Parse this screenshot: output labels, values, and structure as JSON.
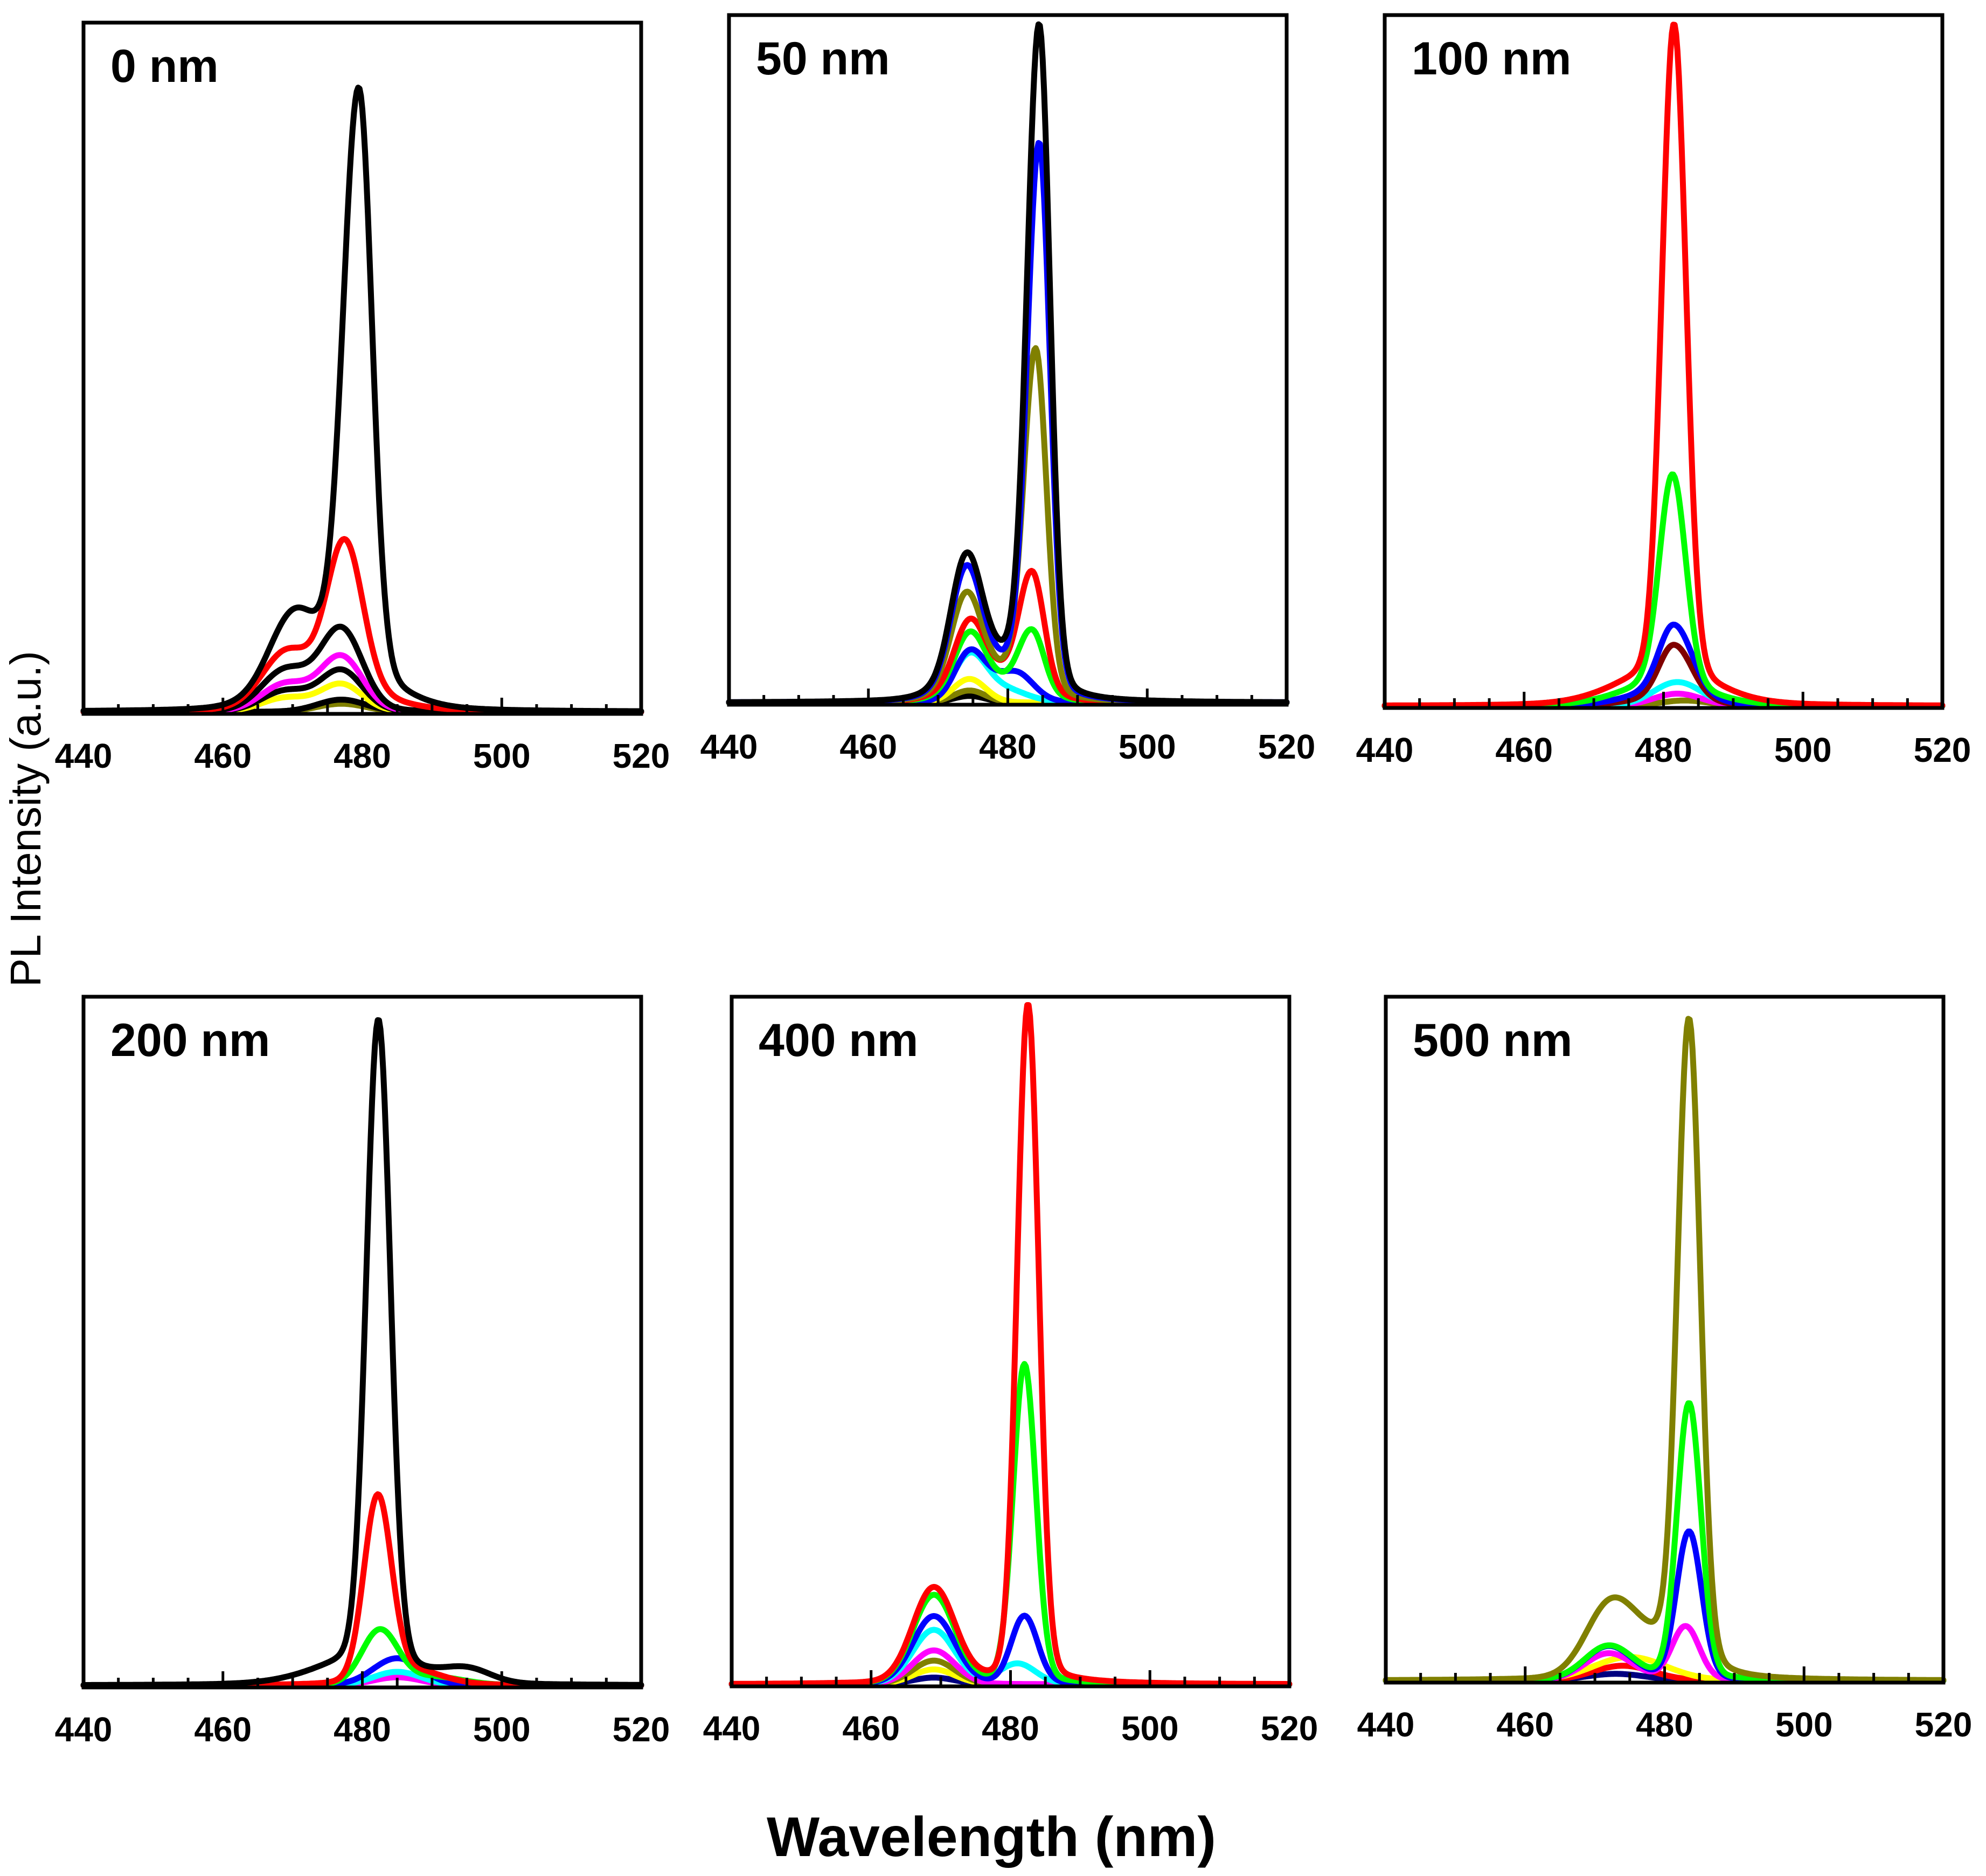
{
  "chart_data": {
    "type": "line",
    "xlabel": "Wavelength (nm)",
    "ylabel": "PL Intensity (a.u.)",
    "xlim": [
      440,
      520
    ],
    "xticks": [
      440,
      460,
      480,
      500,
      520
    ],
    "y_units": "arbitrary (normalized to panel maximum)",
    "panels": [
      {
        "label": "0 nm",
        "ylim": [
          0,
          1.05
        ],
        "series": [
          {
            "color": "#000000",
            "peaks": [
              {
                "center": 479.5,
                "amp": 0.86,
                "w_left": 2.6,
                "w_right": 2.2
              },
              {
                "center": 470,
                "amp": 0.1,
                "w_left": 4,
                "w_right": 4
              },
              {
                "center": 476,
                "amp": 0.06,
                "w_left": 8,
                "w_right": 8
              }
            ]
          },
          {
            "color": "#ff0000",
            "peaks": [
              {
                "center": 477.5,
                "amp": 0.22,
                "w_left": 3,
                "w_right": 3
              },
              {
                "center": 469,
                "amp": 0.07,
                "w_left": 4,
                "w_right": 4
              },
              {
                "center": 476,
                "amp": 0.03,
                "w_left": 8,
                "w_right": 8
              }
            ]
          },
          {
            "color": "#000000",
            "peaks": [
              {
                "center": 477,
                "amp": 0.12,
                "w_left": 3.5,
                "w_right": 3.5
              },
              {
                "center": 469,
                "amp": 0.06,
                "w_left": 4,
                "w_right": 4
              }
            ]
          },
          {
            "color": "#ff00ff",
            "peaks": [
              {
                "center": 477,
                "amp": 0.08,
                "w_left": 3.5,
                "w_right": 3.5
              },
              {
                "center": 469,
                "amp": 0.04,
                "w_left": 4,
                "w_right": 4
              }
            ]
          },
          {
            "color": "#000000",
            "peaks": [
              {
                "center": 477,
                "amp": 0.06,
                "w_left": 3.5,
                "w_right": 3.5
              },
              {
                "center": 469,
                "amp": 0.03,
                "w_left": 4,
                "w_right": 4
              }
            ]
          },
          {
            "color": "#ffff00",
            "peaks": [
              {
                "center": 477,
                "amp": 0.04,
                "w_left": 3.5,
                "w_right": 3.5
              },
              {
                "center": 469,
                "amp": 0.02,
                "w_left": 4,
                "w_right": 4
              }
            ]
          },
          {
            "color": "#000000",
            "peaks": [
              {
                "center": 477,
                "amp": 0.018,
                "w_left": 4,
                "w_right": 4
              }
            ]
          },
          {
            "color": "#808000",
            "peaks": [
              {
                "center": 477,
                "amp": 0.012,
                "w_left": 4,
                "w_right": 4
              }
            ]
          }
        ]
      },
      {
        "label": "50 nm",
        "ylim": [
          0,
          1.05
        ],
        "series": [
          {
            "color": "#000000",
            "peaks": [
              {
                "center": 484.5,
                "amp": 0.97,
                "w_left": 2.0,
                "w_right": 1.8
              },
              {
                "center": 474,
                "amp": 0.17,
                "w_left": 2.5,
                "w_right": 2.5
              },
              {
                "center": 478,
                "amp": 0.06,
                "w_left": 6,
                "w_right": 6
              }
            ]
          },
          {
            "color": "#0000ff",
            "peaks": [
              {
                "center": 484.5,
                "amp": 0.8,
                "w_left": 2.0,
                "w_right": 1.8
              },
              {
                "center": 474,
                "amp": 0.16,
                "w_left": 2.5,
                "w_right": 2.5
              },
              {
                "center": 478,
                "amp": 0.05,
                "w_left": 6,
                "w_right": 6
              }
            ]
          },
          {
            "color": "#808000",
            "peaks": [
              {
                "center": 484,
                "amp": 0.5,
                "w_left": 2.0,
                "w_right": 1.8
              },
              {
                "center": 474,
                "amp": 0.13,
                "w_left": 2.5,
                "w_right": 2.5
              },
              {
                "center": 478,
                "amp": 0.04,
                "w_left": 6,
                "w_right": 6
              }
            ]
          },
          {
            "color": "#ff0000",
            "peaks": [
              {
                "center": 483.5,
                "amp": 0.17,
                "w_left": 2.2,
                "w_right": 2.0
              },
              {
                "center": 474.5,
                "amp": 0.09,
                "w_left": 2.5,
                "w_right": 2.5
              },
              {
                "center": 478,
                "amp": 0.04,
                "w_left": 6,
                "w_right": 6
              }
            ]
          },
          {
            "color": "#00ff00",
            "peaks": [
              {
                "center": 483.5,
                "amp": 0.09,
                "w_left": 2.2,
                "w_right": 2.0
              },
              {
                "center": 474.5,
                "amp": 0.08,
                "w_left": 2.5,
                "w_right": 2.5
              },
              {
                "center": 478,
                "amp": 0.03,
                "w_left": 6,
                "w_right": 6
              }
            ]
          },
          {
            "color": "#0000ff",
            "peaks": [
              {
                "center": 474.5,
                "amp": 0.07,
                "w_left": 2.5,
                "w_right": 2.5
              },
              {
                "center": 481,
                "amp": 0.045,
                "w_left": 4,
                "w_right": 3
              }
            ]
          },
          {
            "color": "#00ffff",
            "peaks": [
              {
                "center": 474.5,
                "amp": 0.065,
                "w_left": 2.7,
                "w_right": 2.7
              },
              {
                "center": 479,
                "amp": 0.02,
                "w_left": 4,
                "w_right": 4
              }
            ]
          },
          {
            "color": "#ffff00",
            "peaks": [
              {
                "center": 474.5,
                "amp": 0.035,
                "w_left": 2.7,
                "w_right": 2.7
              }
            ]
          },
          {
            "color": "#808000",
            "peaks": [
              {
                "center": 474.5,
                "amp": 0.018,
                "w_left": 2.7,
                "w_right": 2.7
              }
            ]
          },
          {
            "color": "#000000",
            "peaks": [
              {
                "center": 474.5,
                "amp": 0.01,
                "w_left": 2.7,
                "w_right": 2.7
              }
            ]
          }
        ]
      },
      {
        "label": "100 nm",
        "ylim": [
          0,
          1.05
        ],
        "series": [
          {
            "color": "#ff0000",
            "peaks": [
              {
                "center": 481.5,
                "amp": 0.96,
                "w_left": 2.0,
                "w_right": 2.0
              },
              {
                "center": 480,
                "amp": 0.04,
                "w_left": 8,
                "w_right": 8
              }
            ]
          },
          {
            "color": "#00ff00",
            "peaks": [
              {
                "center": 481.3,
                "amp": 0.31,
                "w_left": 2.2,
                "w_right": 2.2
              },
              {
                "center": 480,
                "amp": 0.03,
                "w_left": 7,
                "w_right": 7
              }
            ]
          },
          {
            "color": "#0000ff",
            "peaks": [
              {
                "center": 481.5,
                "amp": 0.1,
                "w_left": 2.5,
                "w_right": 3
              },
              {
                "center": 480,
                "amp": 0.02,
                "w_left": 6,
                "w_right": 6
              }
            ]
          },
          {
            "color": "#800000",
            "peaks": [
              {
                "center": 481.5,
                "amp": 0.08,
                "w_left": 2.5,
                "w_right": 3
              },
              {
                "center": 480,
                "amp": 0.01,
                "w_left": 6,
                "w_right": 6
              }
            ]
          },
          {
            "color": "#00ffff",
            "peaks": [
              {
                "center": 482,
                "amp": 0.035,
                "w_left": 4,
                "w_right": 4
              }
            ]
          },
          {
            "color": "#ff00ff",
            "peaks": [
              {
                "center": 482,
                "amp": 0.018,
                "w_left": 4,
                "w_right": 4
              }
            ]
          },
          {
            "color": "#808000",
            "peaks": [
              {
                "center": 483,
                "amp": 0.008,
                "w_left": 4,
                "w_right": 4
              }
            ]
          }
        ]
      },
      {
        "label": "200 nm",
        "ylim": [
          0,
          1.05
        ],
        "series": [
          {
            "color": "#000000",
            "peaks": [
              {
                "center": 482.3,
                "amp": 0.95,
                "w_left": 2.0,
                "w_right": 2.0
              },
              {
                "center": 480,
                "amp": 0.03,
                "w_left": 8,
                "w_right": 8
              },
              {
                "center": 495,
                "amp": 0.02,
                "w_left": 4,
                "w_right": 4
              }
            ]
          },
          {
            "color": "#ff0000",
            "peaks": [
              {
                "center": 482.2,
                "amp": 0.27,
                "w_left": 2.3,
                "w_right": 2.3
              },
              {
                "center": 487,
                "amp": 0.02,
                "w_left": 5,
                "w_right": 5
              }
            ]
          },
          {
            "color": "#00ff00",
            "peaks": [
              {
                "center": 482.5,
                "amp": 0.08,
                "w_left": 3,
                "w_right": 3
              },
              {
                "center": 490,
                "amp": 0.012,
                "w_left": 5,
                "w_right": 5
              }
            ]
          },
          {
            "color": "#0000ff",
            "peaks": [
              {
                "center": 485,
                "amp": 0.04,
                "w_left": 4,
                "w_right": 4
              }
            ]
          },
          {
            "color": "#00ffff",
            "peaks": [
              {
                "center": 485,
                "amp": 0.02,
                "w_left": 4,
                "w_right": 4
              }
            ]
          },
          {
            "color": "#ff00ff",
            "peaks": [
              {
                "center": 485,
                "amp": 0.012,
                "w_left": 4,
                "w_right": 4
              }
            ]
          }
        ]
      },
      {
        "label": "400 nm",
        "ylim": [
          0,
          1.05
        ],
        "series": [
          {
            "color": "#ff0000",
            "peaks": [
              {
                "center": 482.5,
                "amp": 1.0,
                "w_left": 1.8,
                "w_right": 1.8
              },
              {
                "center": 469,
                "amp": 0.14,
                "w_left": 3.5,
                "w_right": 3.5
              }
            ]
          },
          {
            "color": "#00ff00",
            "peaks": [
              {
                "center": 482,
                "amp": 0.47,
                "w_left": 1.9,
                "w_right": 1.9
              },
              {
                "center": 469,
                "amp": 0.13,
                "w_left": 3.5,
                "w_right": 3.5
              }
            ]
          },
          {
            "color": "#0000ff",
            "peaks": [
              {
                "center": 482,
                "amp": 0.1,
                "w_left": 2.2,
                "w_right": 2.2
              },
              {
                "center": 469,
                "amp": 0.1,
                "w_left": 3.5,
                "w_right": 3.5
              }
            ]
          },
          {
            "color": "#00ffff",
            "peaks": [
              {
                "center": 481,
                "amp": 0.03,
                "w_left": 3,
                "w_right": 3
              },
              {
                "center": 469,
                "amp": 0.08,
                "w_left": 3.5,
                "w_right": 3.5
              }
            ]
          },
          {
            "color": "#ff00ff",
            "peaks": [
              {
                "center": 469,
                "amp": 0.05,
                "w_left": 3.5,
                "w_right": 3.5
              }
            ]
          },
          {
            "color": "#808000",
            "peaks": [
              {
                "center": 469,
                "amp": 0.035,
                "w_left": 3.5,
                "w_right": 3.5
              }
            ]
          },
          {
            "color": "#ffff00",
            "peaks": [
              {
                "center": 469,
                "amp": 0.022,
                "w_left": 3.5,
                "w_right": 3.5
              }
            ]
          },
          {
            "color": "#000080",
            "peaks": [
              {
                "center": 469,
                "amp": 0.01,
                "w_left": 3.5,
                "w_right": 3.5
              }
            ]
          }
        ]
      },
      {
        "label": "500 nm",
        "ylim": [
          0,
          1.05
        ],
        "series": [
          {
            "color": "#808000",
            "peaks": [
              {
                "center": 483.5,
                "amp": 0.95,
                "w_left": 1.9,
                "w_right": 1.9
              },
              {
                "center": 472,
                "amp": 0.09,
                "w_left": 4,
                "w_right": 4
              },
              {
                "center": 478,
                "amp": 0.05,
                "w_left": 6,
                "w_right": 6
              }
            ]
          },
          {
            "color": "#00ff00",
            "peaks": [
              {
                "center": 483.5,
                "amp": 0.41,
                "w_left": 2.0,
                "w_right": 2.0
              },
              {
                "center": 472,
                "amp": 0.05,
                "w_left": 4,
                "w_right": 4
              }
            ]
          },
          {
            "color": "#0000ff",
            "peaks": [
              {
                "center": 483.5,
                "amp": 0.22,
                "w_left": 2.1,
                "w_right": 2.1
              },
              {
                "center": 472,
                "amp": 0.05,
                "w_left": 4,
                "w_right": 4
              }
            ]
          },
          {
            "color": "#ff00ff",
            "peaks": [
              {
                "center": 483,
                "amp": 0.08,
                "w_left": 2.3,
                "w_right": 2.3
              },
              {
                "center": 472,
                "amp": 0.04,
                "w_left": 4,
                "w_right": 4
              }
            ]
          },
          {
            "color": "#ffff00",
            "peaks": [
              {
                "center": 475,
                "amp": 0.035,
                "w_left": 6,
                "w_right": 6
              }
            ]
          },
          {
            "color": "#ff0000",
            "peaks": [
              {
                "center": 474,
                "amp": 0.022,
                "w_left": 5,
                "w_right": 5
              }
            ]
          },
          {
            "color": "#000080",
            "peaks": [
              {
                "center": 473,
                "amp": 0.01,
                "w_left": 5,
                "w_right": 5
              }
            ]
          }
        ]
      }
    ]
  }
}
